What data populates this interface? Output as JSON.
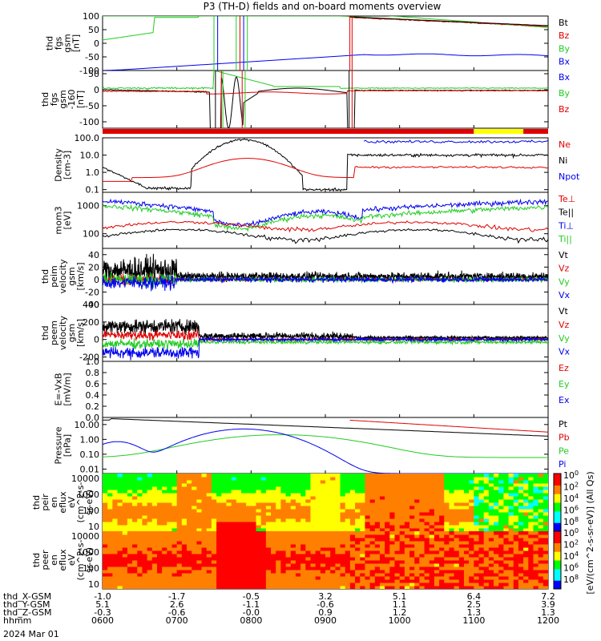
{
  "chart_data": {
    "type": "line",
    "title": "P3 (TH-D) fields and on-board moments overview",
    "date_label": "2024 Mar 01",
    "colors": {
      "black": "#000000",
      "red": "#e00000",
      "green": "#22cc22",
      "blue": "#0000ee",
      "yellow": "#ffff00"
    },
    "time_axis": {
      "rows": [
        {
          "label": "thd_X-GSM",
          "values": [
            "-1.0",
            "-1.7",
            "-0.5",
            "3.2",
            "5.1",
            "6.4",
            "7.2"
          ]
        },
        {
          "label": "thd_Y-GSM",
          "values": [
            "5.1",
            "2.6",
            "-1.1",
            "-0.6",
            "1.1",
            "2.5",
            "3.9"
          ]
        },
        {
          "label": "thd_Z-GSM",
          "values": [
            "-0.3",
            "-0.6",
            "-0.0",
            "0.9",
            "1.2",
            "1.3",
            "1.3"
          ]
        },
        {
          "label": "hhmm",
          "values": [
            "0600",
            "0700",
            "0800",
            "0900",
            "1000",
            "1100",
            "1200"
          ]
        }
      ],
      "range": [
        "0600",
        "1200"
      ]
    },
    "panels": [
      {
        "name": "fgs-gsm",
        "ylabel": [
          "thd",
          "fgs",
          "gsm",
          "[nT]"
        ],
        "ylim": [
          -100,
          100
        ],
        "yticks": [
          "100",
          "50",
          "0",
          "-50",
          "-100"
        ],
        "legend": [
          "Bt",
          "Bz",
          "By",
          "Bx"
        ],
        "legend_colors": [
          "black",
          "red",
          "green",
          "blue"
        ]
      },
      {
        "name": "fgs-gsm-160",
        "ylabel": [
          "thd",
          "fgs",
          "gsm",
          "-160",
          "[nT]"
        ],
        "ylim": [
          -120,
          60
        ],
        "yticks": [
          "50",
          "0",
          "-50",
          "-100"
        ],
        "legend": [
          "Bx",
          "By",
          "Bz"
        ],
        "legend_colors": [
          "blue",
          "green",
          "red"
        ]
      },
      {
        "name": "density",
        "ylabel": [
          "Density",
          "[cm-3]"
        ],
        "scale": "log",
        "ylim": [
          0.07,
          100
        ],
        "yticks": [
          "100.0",
          "10.0",
          "1.0",
          "0.1"
        ],
        "legend": [
          "Ne",
          "Ni",
          "Npot"
        ],
        "legend_colors": [
          "red",
          "black",
          "blue"
        ]
      },
      {
        "name": "temperature",
        "ylabel": [
          "mom3",
          "[eV]"
        ],
        "scale": "log",
        "ylim": [
          30,
          3000
        ],
        "yticks": [
          "1000",
          "100"
        ],
        "legend": [
          "Te⊥",
          "Te||",
          "Ti⊥",
          "Ti||"
        ],
        "legend_colors": [
          "red",
          "black",
          "blue",
          "green"
        ]
      },
      {
        "name": "peim-velocity",
        "ylabel": [
          "thd",
          "peim",
          "velocity",
          "gsm",
          "[km/s]"
        ],
        "ylim": [
          -40,
          50
        ],
        "yticks": [
          "40",
          "20",
          "0",
          "-20",
          "-40"
        ],
        "legend": [
          "Vt",
          "Vz",
          "Vy",
          "Vx"
        ],
        "legend_colors": [
          "black",
          "red",
          "green",
          "blue"
        ]
      },
      {
        "name": "peem-velocity",
        "ylabel": [
          "thd",
          "peem",
          "velocity",
          "gsm",
          "[km/s]"
        ],
        "ylim": [
          -250,
          400
        ],
        "yticks": [
          "400",
          "200",
          "0",
          "-200"
        ],
        "legend": [
          "Vt",
          "Vz",
          "Vy",
          "Vx"
        ],
        "legend_colors": [
          "black",
          "red",
          "green",
          "blue"
        ]
      },
      {
        "name": "e-field",
        "ylabel": [
          "E=-VxB",
          "[mV/m]"
        ],
        "ylim": [
          0,
          1
        ],
        "yticks": [
          "1.0",
          "0.8",
          "0.6",
          "0.4",
          "0.2",
          "0.0"
        ],
        "legend": [
          "Ez",
          "Ey",
          "Ex"
        ],
        "legend_colors": [
          "red",
          "green",
          "blue"
        ]
      },
      {
        "name": "pressure",
        "ylabel": [
          "Pressure",
          "[nPa]"
        ],
        "scale": "log",
        "ylim": [
          0.005,
          30
        ],
        "yticks": [
          "10.00",
          "1.00",
          "0.10",
          "0.01"
        ],
        "legend": [
          "Pt",
          "Pb",
          "Pe",
          "Pi"
        ],
        "legend_colors": [
          "black",
          "red",
          "green",
          "blue"
        ]
      },
      {
        "name": "peir-spectrogram",
        "ylabel": [
          "thd",
          "peir",
          "en",
          "eflux",
          "eV",
          "(cm^2-s-",
          "sr-eV)"
        ],
        "scale": "log",
        "ylim": [
          5,
          20000
        ],
        "yticks": [
          "10000",
          "1000",
          "100",
          "10"
        ]
      },
      {
        "name": "peer-spectrogram",
        "ylabel": [
          "thd",
          "peer",
          "en",
          "eflux",
          "eV",
          "(cm^2-s-",
          "sr-eV)"
        ],
        "scale": "log",
        "ylim": [
          5,
          20000
        ],
        "yticks": [
          "10000",
          "1000",
          "100",
          "10"
        ]
      }
    ],
    "colorbar": {
      "ticks": [
        "10^8",
        "10^6",
        "10^4",
        "10^2",
        "10^0"
      ],
      "label": "[eV/(cm^2-s-sr-eV)] (All Qs)",
      "label_alt": "[eV/(cm^2-s-str-eV)]"
    },
    "mode_bar": {
      "segments": [
        {
          "from": "0600",
          "to": "1100",
          "color": "red"
        },
        {
          "from": "1100",
          "to": "1140",
          "color": "yellow"
        },
        {
          "from": "1140",
          "to": "1200",
          "color": "red"
        }
      ]
    }
  }
}
